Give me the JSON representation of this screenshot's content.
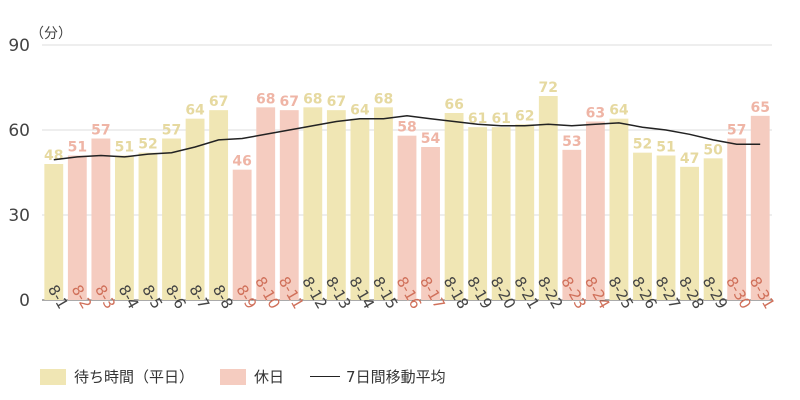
{
  "chart_data": {
    "type": "bar",
    "unit_label": "（分）",
    "y_ticks": [
      0,
      30,
      60,
      90
    ],
    "ylim": [
      0,
      90
    ],
    "grid": true,
    "categories": [
      "8-1",
      "8-2",
      "8-3",
      "8-4",
      "8-5",
      "8-6",
      "8-7",
      "8-8",
      "8-9",
      "8-10",
      "8-11",
      "8-12",
      "8-13",
      "8-14",
      "8-15",
      "8-16",
      "8-17",
      "8-18",
      "8-19",
      "8-20",
      "8-21",
      "8-22",
      "8-23",
      "8-24",
      "8-25",
      "8-26",
      "8-27",
      "8-28",
      "8-29",
      "8-30",
      "8-31"
    ],
    "values": [
      48,
      51,
      57,
      51,
      52,
      57,
      64,
      67,
      46,
      68,
      67,
      68,
      67,
      64,
      68,
      58,
      54,
      66,
      61,
      61,
      62,
      72,
      53,
      63,
      64,
      52,
      51,
      47,
      50,
      57,
      65
    ],
    "holiday": [
      false,
      true,
      true,
      false,
      false,
      false,
      false,
      false,
      true,
      true,
      true,
      false,
      false,
      false,
      false,
      true,
      true,
      false,
      false,
      false,
      false,
      false,
      true,
      true,
      false,
      false,
      false,
      false,
      false,
      true,
      true
    ],
    "moving_average": [
      49.5,
      50.5,
      51.0,
      50.5,
      51.5,
      52.0,
      54.0,
      56.5,
      57.0,
      58.5,
      60.0,
      61.5,
      63.0,
      64.0,
      64.0,
      65.0,
      64.0,
      63.0,
      62.0,
      61.5,
      61.5,
      62.0,
      61.5,
      62.0,
      62.5,
      61.0,
      60.0,
      58.5,
      56.5,
      55.0,
      55.0
    ],
    "series": [
      {
        "name": "待ち時間（平日）",
        "color": "#f0e6b4"
      },
      {
        "name": "休日",
        "color": "#f5ccc0"
      },
      {
        "name": "7日間移動平均",
        "color": "#222222"
      }
    ],
    "colors": {
      "weekday_bar": "#f0e6b4",
      "holiday_bar": "#f5ccc0",
      "weekday_label": "#e6d9a0",
      "holiday_label": "#efb5a6",
      "holiday_tick": "#d0705a",
      "weekday_tick": "#444444",
      "grid": "#dddddd"
    },
    "legend_position": "bottom-left"
  }
}
